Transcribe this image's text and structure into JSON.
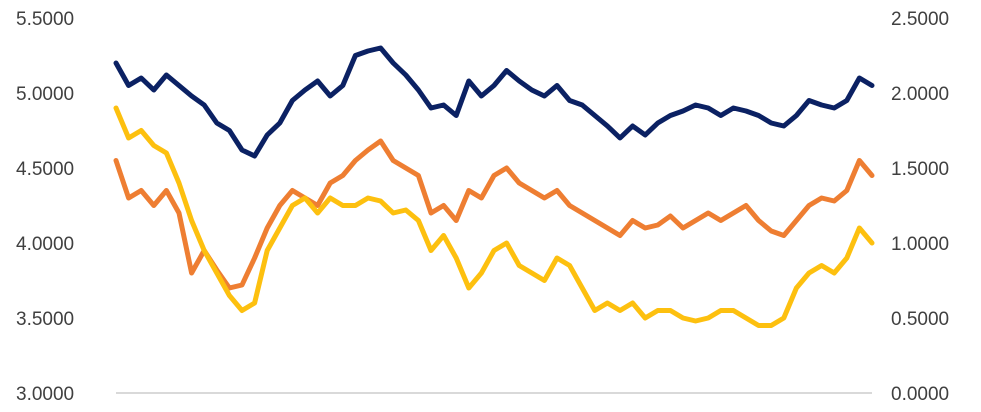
{
  "chart_data": {
    "type": "line",
    "title": "",
    "xlabel": "",
    "ylabel": "",
    "ylim_left": [
      3.0,
      5.5
    ],
    "ylim_right": [
      0.0,
      2.5
    ],
    "yticks_left": [
      "3.0000",
      "3.5000",
      "4.0000",
      "4.5000",
      "5.0000",
      "5.5000"
    ],
    "yticks_right": [
      "0.0000",
      "0.5000",
      "1.0000",
      "1.5000",
      "2.0000",
      "2.5000"
    ],
    "grid": false,
    "legend": "none",
    "colors": {
      "navy": "#0b2163",
      "orange": "#ee7e32",
      "gold": "#fdc00f",
      "axis": "#d9d9d9"
    },
    "x": [
      0,
      1,
      2,
      3,
      4,
      5,
      6,
      7,
      8,
      9,
      10,
      11,
      12,
      13,
      14,
      15,
      16,
      17,
      18,
      19,
      20,
      21,
      22,
      23,
      24,
      25,
      26,
      27,
      28,
      29,
      30,
      31,
      32,
      33,
      34,
      35,
      36,
      37,
      38,
      39,
      40,
      41,
      42,
      43,
      44,
      45,
      46,
      47,
      48,
      49,
      50,
      51,
      52,
      53,
      54,
      55,
      56,
      57,
      58,
      59,
      60
    ],
    "series": [
      {
        "color": "#0b2163",
        "axis": "left",
        "values": [
          5.2,
          5.05,
          5.1,
          5.02,
          5.12,
          5.05,
          4.98,
          4.92,
          4.8,
          4.75,
          4.62,
          4.58,
          4.72,
          4.8,
          4.95,
          5.02,
          5.08,
          4.98,
          5.05,
          5.25,
          5.28,
          5.3,
          5.2,
          5.12,
          5.02,
          4.9,
          4.92,
          4.85,
          5.08,
          4.98,
          5.05,
          5.15,
          5.08,
          5.02,
          4.98,
          5.05,
          4.95,
          4.92,
          4.85,
          4.78,
          4.7,
          4.78,
          4.72,
          4.8,
          4.85,
          4.88,
          4.92,
          4.9,
          4.85,
          4.9,
          4.88,
          4.85,
          4.8,
          4.78,
          4.85,
          4.95,
          4.92,
          4.9,
          4.95,
          5.1,
          5.05
        ]
      },
      {
        "color": "#ee7e32",
        "axis": "right",
        "values": [
          1.55,
          1.3,
          1.35,
          1.25,
          1.35,
          1.2,
          0.8,
          0.95,
          0.82,
          0.7,
          0.72,
          0.9,
          1.1,
          1.25,
          1.35,
          1.3,
          1.25,
          1.4,
          1.45,
          1.55,
          1.62,
          1.68,
          1.55,
          1.5,
          1.45,
          1.2,
          1.25,
          1.15,
          1.35,
          1.3,
          1.45,
          1.5,
          1.4,
          1.35,
          1.3,
          1.35,
          1.25,
          1.2,
          1.15,
          1.1,
          1.05,
          1.15,
          1.1,
          1.12,
          1.18,
          1.1,
          1.15,
          1.2,
          1.15,
          1.2,
          1.25,
          1.15,
          1.08,
          1.05,
          1.15,
          1.25,
          1.3,
          1.28,
          1.35,
          1.55,
          1.45
        ]
      },
      {
        "color": "#fdc00f",
        "axis": "left",
        "values": [
          4.9,
          4.7,
          4.75,
          4.65,
          4.6,
          4.4,
          4.15,
          3.95,
          3.8,
          3.65,
          3.55,
          3.6,
          3.95,
          4.1,
          4.25,
          4.3,
          4.2,
          4.3,
          4.25,
          4.25,
          4.3,
          4.28,
          4.2,
          4.22,
          4.15,
          3.95,
          4.05,
          3.9,
          3.7,
          3.8,
          3.95,
          4.0,
          3.85,
          3.8,
          3.75,
          3.9,
          3.85,
          3.7,
          3.55,
          3.6,
          3.55,
          3.6,
          3.5,
          3.55,
          3.55,
          3.5,
          3.48,
          3.5,
          3.55,
          3.55,
          3.5,
          3.45,
          3.45,
          3.5,
          3.7,
          3.8,
          3.85,
          3.8,
          3.9,
          4.1,
          4.0
        ]
      }
    ]
  }
}
